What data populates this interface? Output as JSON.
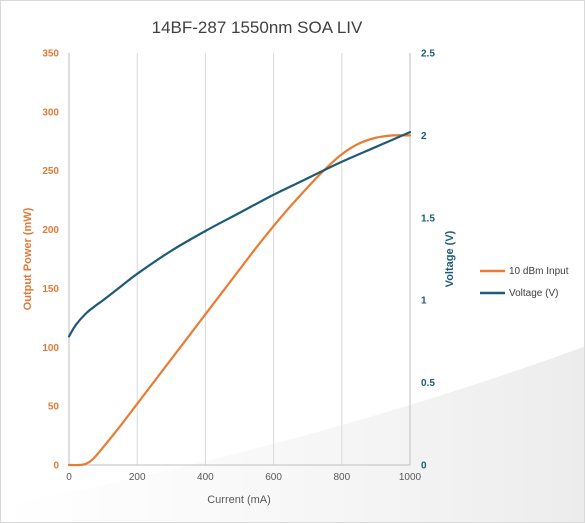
{
  "chart_data": {
    "type": "line",
    "title": "14BF-287 1550nm SOA LIV",
    "xlabel": "Current (mA)",
    "ylabel_left": "Output Power (mW)",
    "ylabel_right": "Voltage (V)",
    "xlim": [
      0,
      1000
    ],
    "ylim_left": [
      0,
      350
    ],
    "ylim_right": [
      0,
      2.5
    ],
    "x_ticks": [
      "0",
      "200",
      "400",
      "600",
      "800",
      "1000"
    ],
    "y_left_ticks": [
      "0",
      "50",
      "100",
      "150",
      "200",
      "250",
      "300",
      "350"
    ],
    "y_right_ticks": [
      "0",
      "0.5",
      "1",
      "1.5",
      "2",
      "2.5"
    ],
    "grid": "vertical",
    "legend_position": "right",
    "series": [
      {
        "name": "10 dBm Input",
        "axis": "left",
        "color": "#e97b32",
        "x": [
          0,
          30,
          50,
          70,
          100,
          150,
          200,
          250,
          300,
          350,
          400,
          450,
          500,
          550,
          600,
          650,
          700,
          750,
          800,
          850,
          900,
          950,
          1000
        ],
        "y": [
          0,
          0,
          1,
          5,
          15,
          33,
          52,
          71,
          90,
          109,
          128,
          147,
          166,
          185,
          203,
          220,
          236,
          251,
          264,
          273,
          278,
          280,
          280
        ]
      },
      {
        "name": "Voltage (V)",
        "axis": "right",
        "color": "#1e5b78",
        "x": [
          0,
          20,
          50,
          80,
          100,
          150,
          200,
          300,
          400,
          500,
          600,
          700,
          800,
          900,
          1000
        ],
        "y": [
          0.78,
          0.85,
          0.92,
          0.97,
          1.0,
          1.08,
          1.16,
          1.3,
          1.42,
          1.53,
          1.64,
          1.74,
          1.84,
          1.93,
          2.02
        ]
      }
    ]
  }
}
